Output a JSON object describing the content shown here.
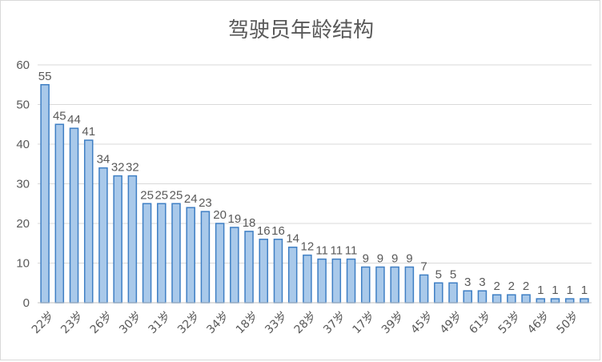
{
  "chart_data": {
    "type": "bar",
    "title": "驾驶员年龄结构",
    "xlabel": "",
    "ylabel": "",
    "ylim": [
      0,
      60
    ],
    "yticks": [
      0,
      10,
      20,
      30,
      40,
      50,
      60
    ],
    "grid": true,
    "legend": "none",
    "colors": {
      "bar_fill": "#a9c9ea",
      "bar_stroke": "#3f7fc4",
      "text": "#595959",
      "grid": "#d9d9d9"
    },
    "categories": [
      "22岁",
      "",
      "23岁",
      "",
      "26岁",
      "",
      "30岁",
      "",
      "31岁",
      "",
      "32岁",
      "",
      "34岁",
      "",
      "18岁",
      "",
      "33岁",
      "",
      "28岁",
      "",
      "37岁",
      "",
      "17岁",
      "",
      "39岁",
      "",
      "45岁",
      "",
      "49岁",
      "",
      "61岁",
      "",
      "53岁",
      "",
      "46岁",
      "",
      "50岁",
      ""
    ],
    "values": [
      55,
      45,
      44,
      41,
      34,
      32,
      32,
      25,
      25,
      25,
      24,
      23,
      20,
      19,
      18,
      16,
      16,
      14,
      12,
      11,
      11,
      11,
      9,
      9,
      9,
      9,
      7,
      5,
      5,
      3,
      3,
      2,
      2,
      2,
      1,
      1,
      1,
      1
    ],
    "data_labels": [
      "55",
      "45",
      "44",
      "41",
      "34",
      "32",
      "32",
      "25",
      "25",
      "25",
      "24",
      "23",
      "20",
      "19",
      "18",
      "16",
      "16",
      "14",
      "12",
      "11",
      "11",
      "11",
      "9",
      "9",
      "9",
      "9",
      "7",
      "5",
      "5",
      "3",
      "3",
      "2",
      "2",
      "2",
      "1",
      "1",
      "1",
      "1"
    ]
  }
}
